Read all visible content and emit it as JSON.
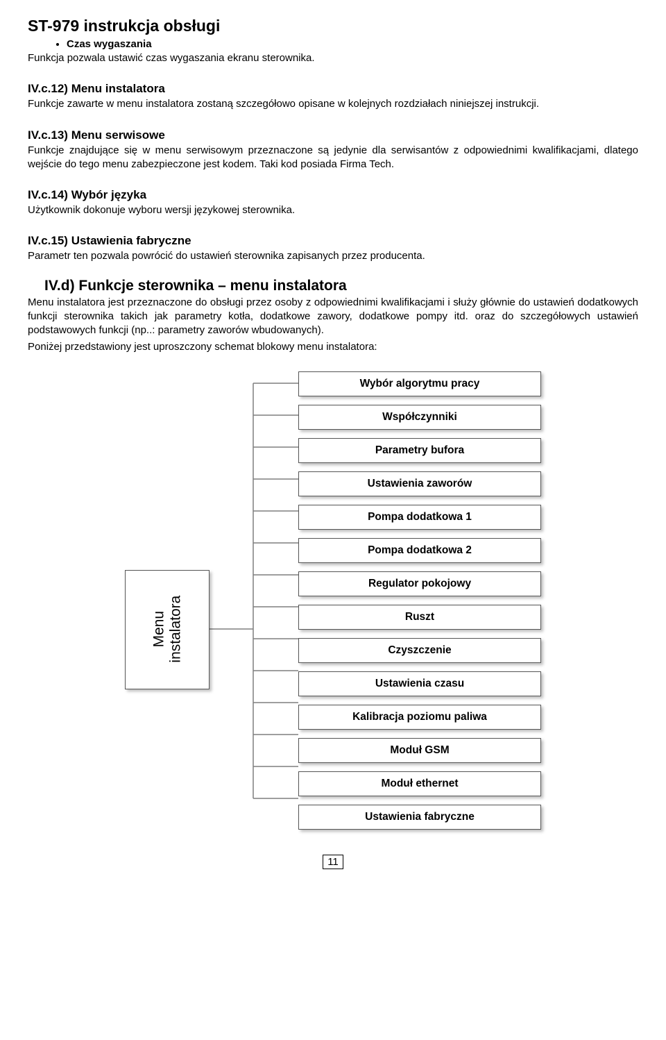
{
  "doc_title": "ST-979 instrukcja obsługi",
  "bullet1": "Czas wygaszania",
  "bullet1_desc": "Funkcja pozwala ustawić czas wygaszania ekranu sterownika.",
  "sec_12_title": "IV.c.12) Menu instalatora",
  "sec_12_body": "Funkcje zawarte w menu instalatora zostaną szczegółowo opisane w kolejnych rozdziałach niniejszej instrukcji.",
  "sec_13_title": "IV.c.13) Menu serwisowe",
  "sec_13_body": "Funkcje znajdujące się w menu serwisowym przeznaczone są jedynie dla serwisantów z odpowiednimi kwalifikacjami, dlatego wejście do tego menu zabezpieczone jest kodem. Taki kod posiada Firma Tech.",
  "sec_14_title": "IV.c.14) Wybór języka",
  "sec_14_body": "Użytkownik dokonuje wyboru wersji językowej sterownika.",
  "sec_15_title": "IV.c.15) Ustawienia fabryczne",
  "sec_15_body": "Parametr ten pozwala powrócić do ustawień sterownika zapisanych przez producenta.",
  "sec_d_title": "IV.d) Funkcje sterownika – menu instalatora",
  "sec_d_body": "Menu instalatora jest przeznaczone do obsługi przez osoby z odpowiednimi kwalifikacjami i służy głównie do ustawień dodatkowych funkcji sterownika takich jak parametry kotła, dodatkowe zawory, dodatkowe pompy itd. oraz do szczegółowych ustawień podstawowych funkcji (np..: parametry zaworów wbudowanych).",
  "sec_d_body2": "Poniżej przedstawiony jest uproszczony schemat blokowy menu instalatora:",
  "diagram": {
    "root": "Menu\ninstalatora",
    "stroke_color": "#7e7e7e",
    "leaves": [
      "Wybór algorytmu pracy",
      "Współczynniki",
      "Parametry bufora",
      "Ustawienia zaworów",
      "Pompa dodatkowa 1",
      "Pompa dodatkowa 2",
      "Regulator pokojowy",
      "Ruszt",
      "Czyszczenie",
      "Ustawienia czasu",
      "Kalibracja poziomu paliwa",
      "Moduł GSM",
      "Moduł ethernet",
      "Ustawienia fabryczne"
    ]
  },
  "page_number": "11"
}
